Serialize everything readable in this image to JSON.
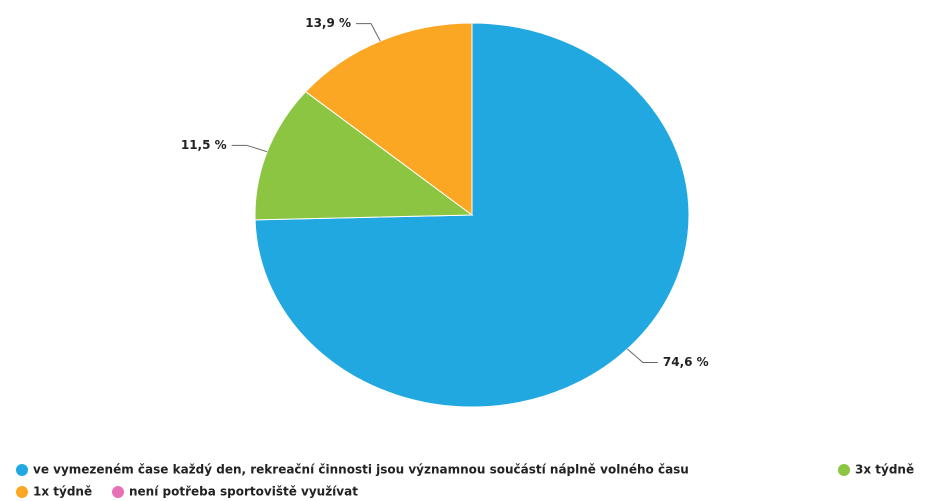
{
  "chart_data": {
    "type": "pie",
    "categories": [
      "ve vymezeném čase každý den, rekreační činnosti jsou významnou součástí náplně volného času",
      "3x týdně",
      "1x týdně",
      "není potřeba sportoviště využívat"
    ],
    "values": [
      74.6,
      11.5,
      13.9,
      0
    ],
    "value_labels": [
      "74,6 %",
      "11,5 %",
      "13,9 %",
      null
    ],
    "colors": [
      "#22a8e0",
      "#8bc541",
      "#fca724",
      "#e870b4"
    ]
  }
}
